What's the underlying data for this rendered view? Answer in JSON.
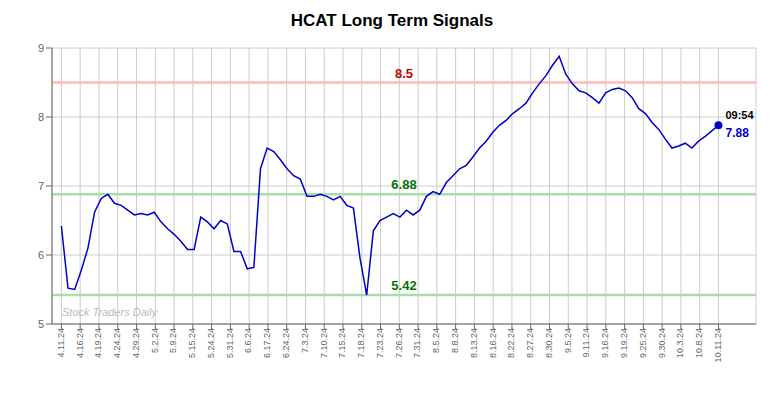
{
  "chart_data": {
    "type": "line",
    "title": "HCAT Long Term Signals",
    "x": [
      0,
      0.3535,
      0.7071,
      1.0606,
      1.4141,
      1.7677,
      2.1212,
      2.4747,
      2.8283,
      3.1818,
      3.5354,
      3.8889,
      4.2424,
      4.596,
      4.9495,
      5.303,
      5.6566,
      6.0101,
      6.3636,
      6.7172,
      7.0707,
      7.4242,
      7.7778,
      8.1313,
      8.4848,
      8.8384,
      9.1919,
      9.5455,
      9.899,
      10.2525,
      10.6061,
      10.9596,
      11.3131,
      11.6667,
      12.0202,
      12.3737,
      12.7273,
      13.0808,
      13.4343,
      13.7879,
      14.1414,
      14.4949,
      14.8485,
      15.202,
      15.5556,
      15.9091,
      16.2626,
      16.6162,
      16.9697,
      17.3232,
      17.6768,
      18.0303,
      18.3838,
      18.7374,
      19.0909,
      19.4444,
      19.798,
      20.1515,
      20.5051,
      20.8586,
      21.2121,
      21.5657,
      21.9192,
      22.2727,
      22.6263,
      22.9798,
      23.3333,
      23.6869,
      24.0404,
      24.3939,
      24.7475,
      25.101,
      25.4545,
      25.8081,
      26.1616,
      26.5152,
      26.8687,
      27.2222,
      27.5758,
      27.9293,
      28.2828,
      28.6364,
      28.9899,
      29.3434,
      29.697,
      30.0505,
      30.404,
      30.7576,
      31.1111,
      31.4646,
      31.8182,
      32.1717,
      32.5253,
      32.8788,
      33.2323,
      33.5859,
      33.9394,
      34.2929,
      34.6465,
      35
    ],
    "values": [
      6.42,
      5.52,
      5.5,
      5.78,
      6.1,
      6.62,
      6.82,
      6.88,
      6.75,
      6.72,
      6.65,
      6.58,
      6.6,
      6.58,
      6.62,
      6.48,
      6.38,
      6.3,
      6.2,
      6.08,
      6.08,
      6.55,
      6.48,
      6.38,
      6.5,
      6.45,
      6.05,
      6.05,
      5.8,
      5.82,
      7.25,
      7.55,
      7.5,
      7.38,
      7.25,
      7.15,
      7.1,
      6.85,
      6.85,
      6.88,
      6.85,
      6.8,
      6.85,
      6.72,
      6.68,
      5.95,
      5.42,
      6.35,
      6.5,
      6.55,
      6.6,
      6.55,
      6.65,
      6.58,
      6.65,
      6.85,
      6.92,
      6.88,
      7.05,
      7.15,
      7.25,
      7.3,
      7.42,
      7.55,
      7.65,
      7.78,
      7.88,
      7.95,
      8.05,
      8.12,
      8.2,
      8.35,
      8.48,
      8.6,
      8.75,
      8.88,
      8.62,
      8.48,
      8.38,
      8.35,
      8.28,
      8.2,
      8.35,
      8.4,
      8.42,
      8.38,
      8.28,
      8.12,
      8.05,
      7.92,
      7.82,
      7.68,
      7.55,
      7.58,
      7.62,
      7.55,
      7.65,
      7.72,
      7.8,
      7.88
    ],
    "color": "#0000cc",
    "xlim": [
      -0.5,
      37
    ],
    "xticks": [
      {
        "value": 0,
        "label": "4.11.24"
      },
      {
        "value": 1,
        "label": "4.16.24"
      },
      {
        "value": 2,
        "label": "4.19.24"
      },
      {
        "value": 3,
        "label": "4.24.24"
      },
      {
        "value": 4,
        "label": "4.29.24"
      },
      {
        "value": 5,
        "label": "5.2.24"
      },
      {
        "value": 6,
        "label": "5.9.24"
      },
      {
        "value": 7,
        "label": "5.15.24"
      },
      {
        "value": 8,
        "label": "5.24.24"
      },
      {
        "value": 9,
        "label": "5.31.24"
      },
      {
        "value": 10,
        "label": "6.6.24"
      },
      {
        "value": 11,
        "label": "6.17.24"
      },
      {
        "value": 12,
        "label": "6.24.24"
      },
      {
        "value": 13,
        "label": "7.3.24"
      },
      {
        "value": 14,
        "label": "7.10.24"
      },
      {
        "value": 15,
        "label": "7.15.24"
      },
      {
        "value": 16,
        "label": "7.18.24"
      },
      {
        "value": 17,
        "label": "7.23.24"
      },
      {
        "value": 18,
        "label": "7.26.24"
      },
      {
        "value": 19,
        "label": "7.31.24"
      },
      {
        "value": 20,
        "label": "8.5.24"
      },
      {
        "value": 21,
        "label": "8.8.24"
      },
      {
        "value": 22,
        "label": "8.13.24"
      },
      {
        "value": 23,
        "label": "8.16.24"
      },
      {
        "value": 24,
        "label": "8.22.24"
      },
      {
        "value": 25,
        "label": "8.27.24"
      },
      {
        "value": 26,
        "label": "8.30.24"
      },
      {
        "value": 27,
        "label": "9.5.24"
      },
      {
        "value": 28,
        "label": "9.11.24"
      },
      {
        "value": 29,
        "label": "9.16.24"
      },
      {
        "value": 30,
        "label": "9.19.24"
      },
      {
        "value": 31,
        "label": "9.25.24"
      },
      {
        "value": 32,
        "label": "9.30.24"
      },
      {
        "value": 33,
        "label": "10.3.24"
      },
      {
        "value": 34,
        "label": "10.8.24"
      },
      {
        "value": 35,
        "label": "10.11.24"
      }
    ],
    "ylim": [
      5,
      9
    ],
    "yticks": [
      5,
      6,
      7,
      8,
      9
    ],
    "grid": true,
    "hlines": [
      {
        "value": 8.5,
        "color": "#ffbbbb",
        "label": {
          "text": "8.5",
          "color": "#cc0000"
        }
      },
      {
        "value": 6.88,
        "color": "#aaddaa",
        "label": {
          "text": "6.88",
          "color": "#007700"
        }
      },
      {
        "value": 5.42,
        "color": "#aaddaa",
        "label": {
          "text": "5.42",
          "color": "#007700"
        }
      }
    ],
    "last_point": {
      "time": "09:54",
      "label": "7.88",
      "color": "#0000cc"
    },
    "watermark": {
      "text": "Stock Traders Daily",
      "color": "#bbbbbb"
    }
  }
}
